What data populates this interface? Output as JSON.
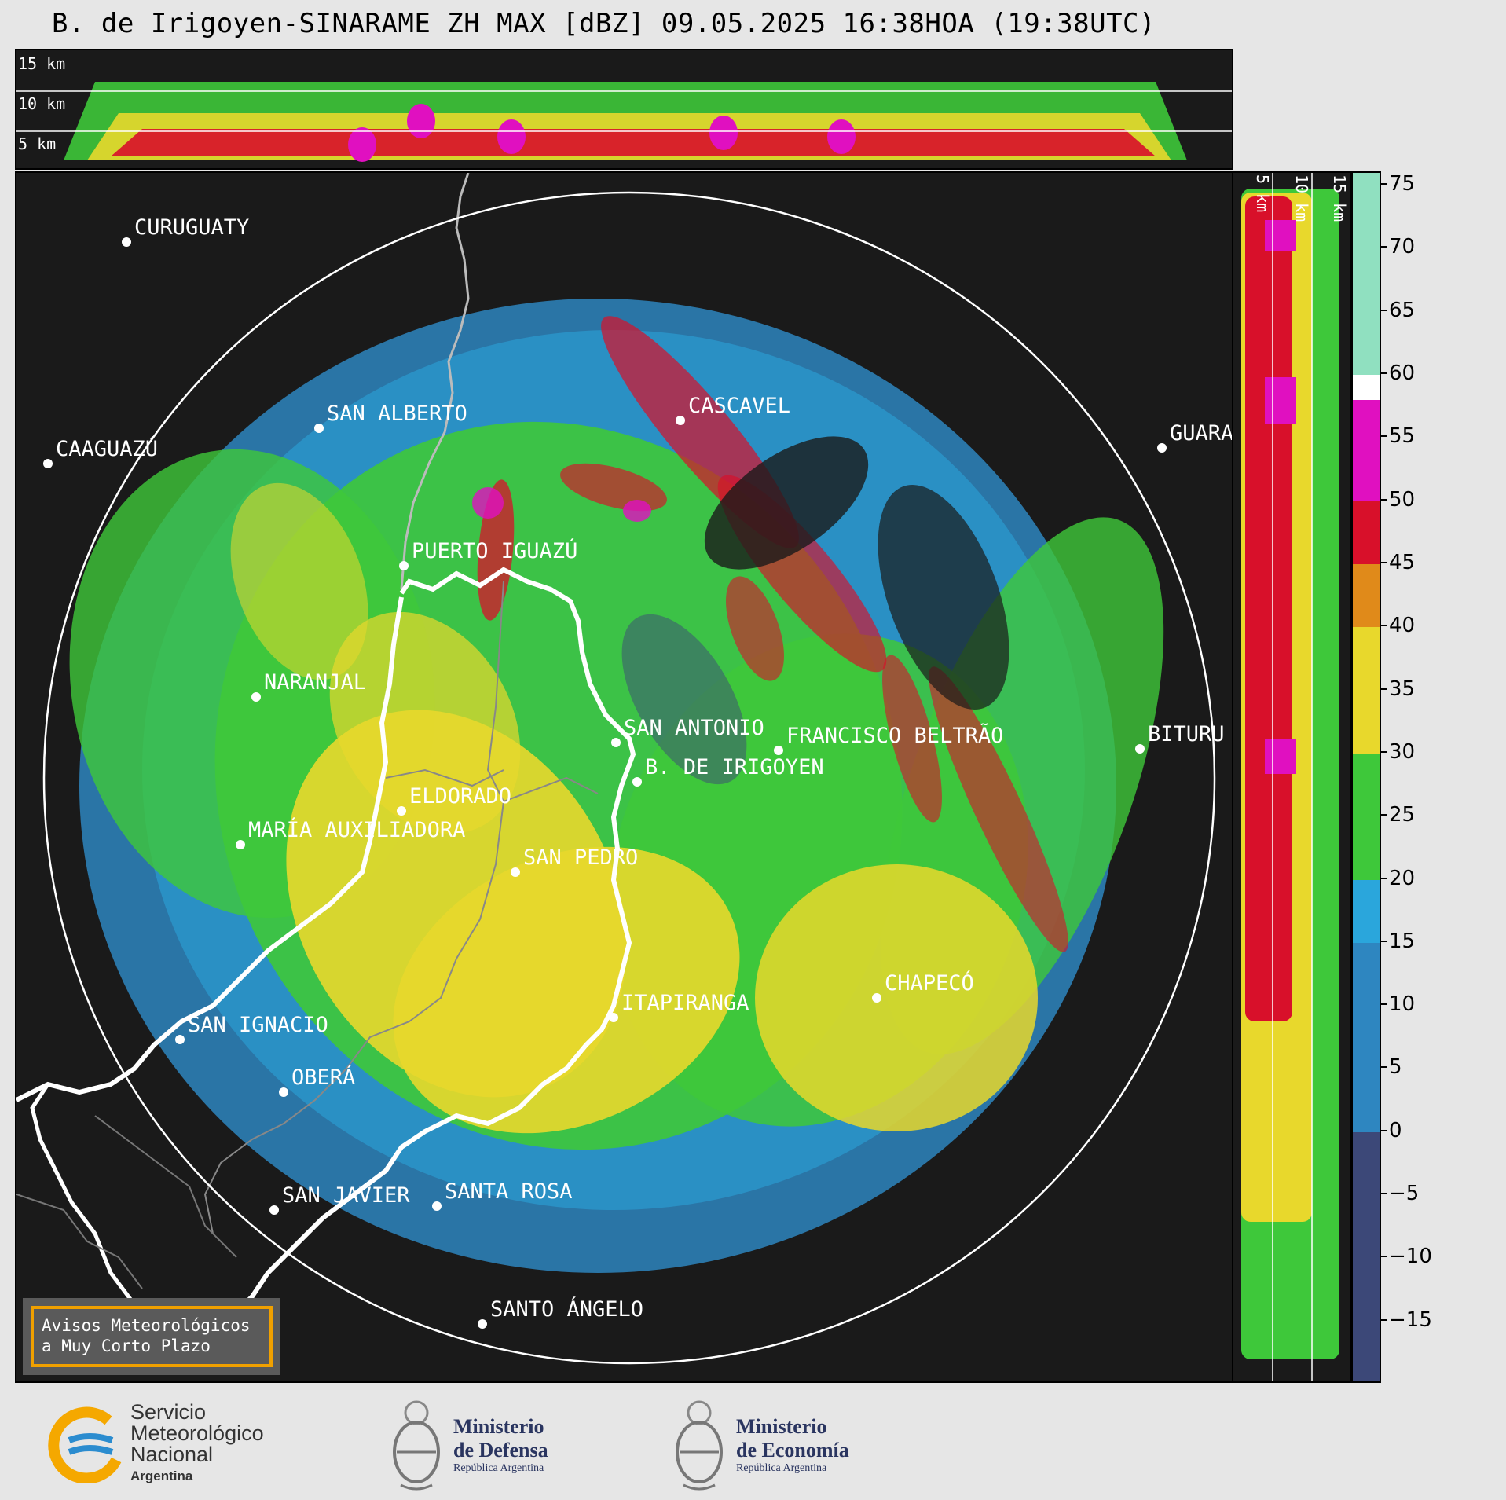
{
  "title": "B. de Irigoyen-SINARAME ZH MAX [dBZ] 09.05.2025 16:38HOA (19:38UTC)",
  "top_section": {
    "height_labels": [
      "15 km",
      "10 km",
      "5 km"
    ]
  },
  "right_section": {
    "height_labels": [
      "5 km",
      "10 km",
      "15 km"
    ]
  },
  "colorbar": {
    "ticks": [
      "75",
      "70",
      "65",
      "60",
      "55",
      "50",
      "45",
      "40",
      "35",
      "30",
      "25",
      "20",
      "15",
      "10",
      "5",
      "0",
      "−5",
      "−10",
      "−15"
    ],
    "tick_values": [
      75,
      70,
      65,
      60,
      55,
      50,
      45,
      40,
      35,
      30,
      25,
      20,
      15,
      10,
      5,
      0,
      -5,
      -10,
      -15
    ],
    "range": [
      -20,
      76
    ],
    "colors": {
      "below_0": "#3c4878",
      "0_to_15": "#2e86c0",
      "15_to_20": "#2aa6dc",
      "20_to_30": "#3ec83a",
      "30_to_40": "#e8d82c",
      "40_to_45": "#e08a1a",
      "45_to_50": "#d8102a",
      "50_to_58": "#e010c0",
      "58_to_60": "#ffffff",
      "60_to_76": "#90e0c0"
    }
  },
  "cities": [
    {
      "name": "CURUGUATY"
    },
    {
      "name": "SAN ALBERTO"
    },
    {
      "name": "CASCAVEL"
    },
    {
      "name": "CAAGUAZÚ"
    },
    {
      "name": "GUARA"
    },
    {
      "name": "PUERTO IGUAZÚ"
    },
    {
      "name": "NARANJAL"
    },
    {
      "name": "SAN ANTONIO"
    },
    {
      "name": "FRANCISCO BELTRÃO"
    },
    {
      "name": "BITURU"
    },
    {
      "name": "B. DE IRIGOYEN"
    },
    {
      "name": "ELDORADO"
    },
    {
      "name": "MARÍA AUXILIADORA"
    },
    {
      "name": "SAN PEDRO"
    },
    {
      "name": "CHAPECÓ"
    },
    {
      "name": "ITAPIRANGA"
    },
    {
      "name": "SAN IGNACIO"
    },
    {
      "name": "OBERÁ"
    },
    {
      "name": "SAN JAVIER"
    },
    {
      "name": "SANTA ROSA"
    },
    {
      "name": "SANTO ÁNGELO"
    }
  ],
  "alert_box": {
    "line1": "Avisos Meteorológicos",
    "line2": "a Muy Corto Plazo"
  },
  "footer": {
    "smn": {
      "line1": "Servicio",
      "line2": "Meteorológico",
      "line3": "Nacional",
      "line4": "Argentina"
    },
    "defensa": {
      "line1": "Ministerio",
      "line2": "de Defensa",
      "line3": "República Argentina"
    },
    "economia": {
      "line1": "Ministerio",
      "line2": "de Economía",
      "line3": "República Argentina"
    }
  }
}
